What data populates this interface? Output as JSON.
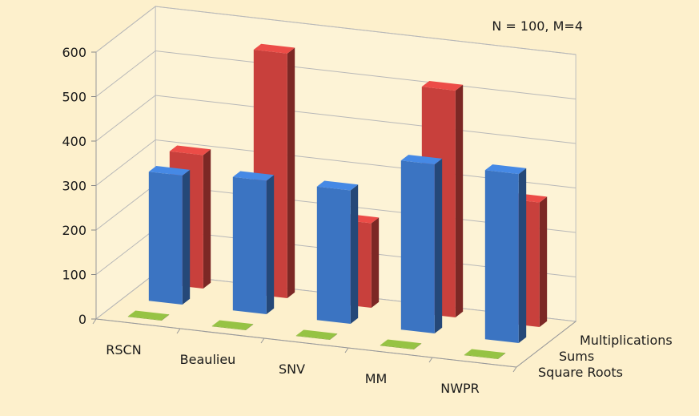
{
  "chart_data": {
    "type": "bar",
    "subtype": "3d-column",
    "annotation": "N = 100, M=4",
    "categories": [
      "RSCN",
      "Beaulieu",
      "SNV",
      "MM",
      "NWPR"
    ],
    "series": [
      {
        "name": "Square Roots",
        "values": [
          1,
          1,
          1,
          1,
          1
        ],
        "color": "#7fa53a"
      },
      {
        "name": "Sums",
        "values": [
          290,
          300,
          300,
          380,
          380
        ],
        "color": "#3b74c2"
      },
      {
        "name": "Multiplications",
        "values": [
          300,
          550,
          190,
          510,
          280
        ],
        "color": "#c8403c"
      }
    ],
    "yticks": [
      0,
      100,
      200,
      300,
      400,
      500,
      600
    ],
    "ylim": [
      0,
      600
    ],
    "grid": true
  }
}
